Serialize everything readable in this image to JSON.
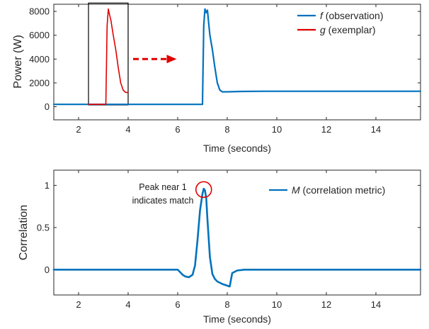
{
  "chart_data": [
    {
      "type": "line",
      "xlabel": "Time (seconds)",
      "ylabel": "Power (W)",
      "xlim": [
        1,
        15.8
      ],
      "ylim": [
        -1100,
        8600
      ],
      "x_ticks": [
        2,
        4,
        6,
        8,
        10,
        12,
        14
      ],
      "y_ticks": [
        0,
        2000,
        4000,
        6000,
        8000
      ],
      "legend_position": "top-right",
      "series": [
        {
          "name_prefix": "f",
          "name_suffix": " (observation)",
          "color": "#0072BD",
          "x": [
            1.0,
            7.0,
            7.05,
            7.1,
            7.15,
            7.2,
            7.25,
            7.3,
            7.4,
            7.5,
            7.6,
            7.7,
            7.8,
            8.0,
            8.5,
            9.5,
            15.8
          ],
          "y": [
            200,
            200,
            6800,
            8200,
            7900,
            8100,
            7000,
            6000,
            4800,
            3300,
            2000,
            1400,
            1250,
            1250,
            1280,
            1300,
            1300
          ]
        },
        {
          "name_prefix": "g",
          "name_suffix": " (exemplar)",
          "color": "#E00000",
          "x": [
            2.4,
            3.1,
            3.15,
            3.2,
            3.25,
            3.3,
            3.4,
            3.5,
            3.6,
            3.7,
            3.8,
            3.9,
            4.0
          ],
          "y": [
            200,
            200,
            6800,
            8200,
            7700,
            7300,
            6000,
            4800,
            3300,
            2000,
            1400,
            1200,
            1200
          ]
        }
      ],
      "inset_box": {
        "x": [
          2.4,
          4.0
        ],
        "y": [
          150,
          8700
        ]
      },
      "arrow": {
        "from": [
          4.2,
          4000
        ],
        "to": [
          5.9,
          4000
        ],
        "color": "#E00000"
      }
    },
    {
      "type": "line",
      "xlabel": "Time (seconds)",
      "ylabel": "Correlation",
      "xlim": [
        1,
        15.8
      ],
      "ylim": [
        -0.3,
        1.18
      ],
      "x_ticks": [
        2,
        4,
        6,
        8,
        10,
        12,
        14
      ],
      "y_ticks": [
        0,
        0.5,
        1
      ],
      "legend_position": "top-right",
      "series": [
        {
          "name_prefix": "M",
          "name_suffix": " (correlation metric)",
          "color": "#0072BD",
          "x": [
            1.0,
            6.0,
            6.1,
            6.2,
            6.3,
            6.45,
            6.6,
            6.7,
            6.8,
            6.9,
            7.0,
            7.05,
            7.1,
            7.15,
            7.2,
            7.3,
            7.4,
            7.5,
            7.6,
            7.8,
            8.0,
            8.1,
            8.2,
            8.4,
            8.7,
            15.8
          ],
          "y": [
            0,
            0,
            -0.03,
            -0.06,
            -0.08,
            -0.09,
            -0.06,
            0.05,
            0.35,
            0.7,
            0.9,
            0.96,
            0.94,
            0.85,
            0.6,
            0.15,
            -0.05,
            -0.11,
            -0.14,
            -0.17,
            -0.19,
            -0.2,
            -0.04,
            -0.01,
            0,
            0
          ]
        }
      ],
      "annotation": {
        "lines": [
          "Peak near 1",
          "indicates match"
        ],
        "circle_at": [
          7.05,
          0.95
        ],
        "circle_color": "#E00000"
      }
    }
  ]
}
